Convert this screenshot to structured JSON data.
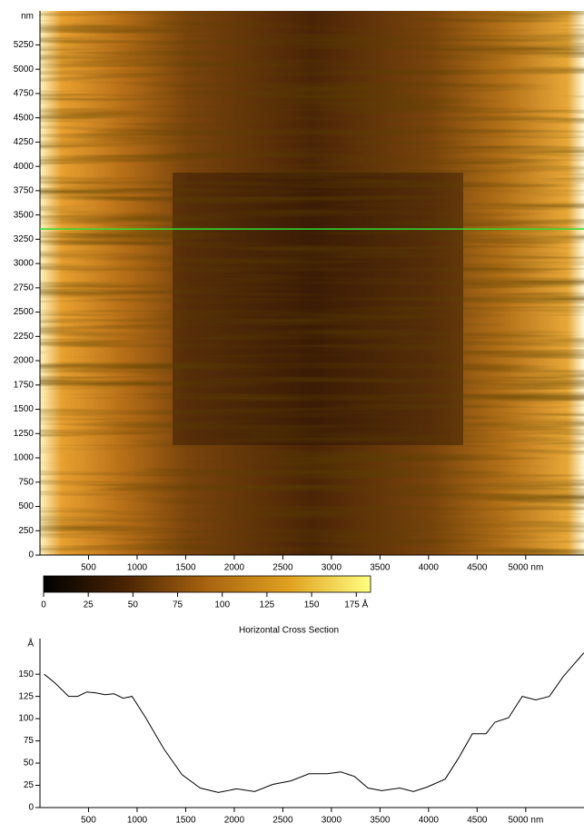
{
  "chart_data": [
    {
      "type": "image",
      "xlim": [
        0,
        5600
      ],
      "ylim": [
        0,
        5600
      ],
      "xticks": [
        500,
        1000,
        1500,
        2000,
        2500,
        3000,
        3500,
        4000,
        4500,
        {
          "value": 5000,
          "label": "5000 nm"
        }
      ],
      "yticks": [
        0,
        250,
        500,
        750,
        1000,
        1250,
        1500,
        1750,
        2000,
        2250,
        2500,
        2750,
        3000,
        3250,
        3500,
        3750,
        4000,
        4250,
        4500,
        4750,
        5000,
        5250
      ],
      "y_unit": "nm",
      "section_y": 3355,
      "section_color": "#33dd33"
    },
    {
      "type": "colorbar",
      "xlim": [
        0,
        183
      ],
      "xticks": [
        0,
        25,
        50,
        75,
        100,
        125,
        150,
        {
          "value": 175,
          "label": "175 Å"
        }
      ]
    },
    {
      "type": "line",
      "title": "Horizontal Cross Section",
      "x": [
        43,
        155,
        295,
        388,
        482,
        575,
        668,
        762,
        855,
        948,
        1088,
        1275,
        1462,
        1649,
        1836,
        2023,
        2209,
        2396,
        2583,
        2770,
        2957,
        3097,
        3237,
        3377,
        3517,
        3704,
        3844,
        3984,
        4171,
        4311,
        4451,
        4591,
        4684,
        4824,
        4964,
        5104,
        5244,
        5384,
        5598
      ],
      "series": [
        {
          "color": "#000000",
          "values": [
            150,
            140,
            125,
            125,
            130,
            129,
            127,
            128,
            123,
            125,
            101,
            66,
            37,
            22,
            17,
            21,
            18,
            26,
            30,
            38,
            38,
            40,
            35,
            22,
            19,
            22,
            18,
            23,
            32,
            56,
            83,
            83,
            96,
            101,
            125,
            121,
            125,
            147,
            174
          ]
        }
      ],
      "xlim": [
        0,
        5600
      ],
      "ylim": [
        0,
        190
      ],
      "xticks": [
        500,
        1000,
        1500,
        2000,
        2500,
        3000,
        3500,
        4000,
        4500,
        {
          "value": 5000,
          "label": "5000 nm"
        }
      ],
      "yticks": [
        0,
        25,
        50,
        75,
        100,
        125,
        150
      ],
      "y_unit": "Å"
    }
  ]
}
